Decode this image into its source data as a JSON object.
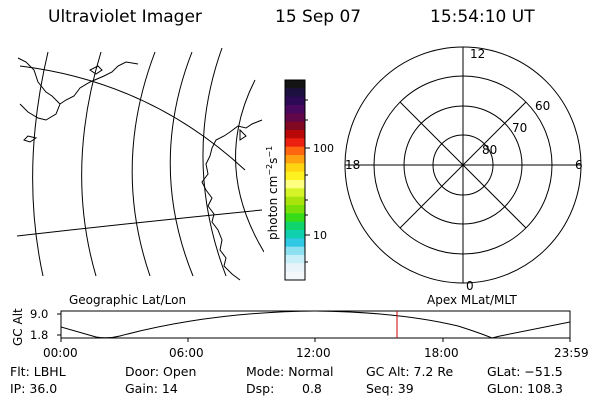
{
  "header": {
    "title": "Ultraviolet Imager",
    "date": "15 Sep 07",
    "time": "15:54:10 UT"
  },
  "colorbar": {
    "unit_main": "photon cm",
    "unit_sup1": "−2",
    "unit_s": "s",
    "unit_sup2": "−1",
    "tick_100": "100",
    "tick_10": "10",
    "colors": [
      "#141414",
      "#1c1040",
      "#2c0a55",
      "#48085e",
      "#62064a",
      "#800820",
      "#b80808",
      "#ec2010",
      "#ff6610",
      "#ffa010",
      "#ffd410",
      "#fff020",
      "#ffff80",
      "#d4f428",
      "#a8e40c",
      "#78e008",
      "#36dc18",
      "#10d46c",
      "#10d0b0",
      "#30c8e4",
      "#8ce0f0",
      "#c8eef8",
      "#e8f4fa",
      "#f4f8fb"
    ]
  },
  "polar": {
    "lat_labels": [
      "80",
      "70",
      "60"
    ],
    "mlt_labels": {
      "top": "12",
      "left": "18",
      "right": "6",
      "bottom": "0"
    }
  },
  "labels": {
    "geo": "Geographic Lat/Lon",
    "apex": "Apex MLat/MLT"
  },
  "altitude_plot": {
    "axis_title": "GC Alt",
    "y_ticks": [
      "9.0",
      "1.8"
    ],
    "x_ticks": [
      "00:00",
      "06:00",
      "12:00",
      "18:00",
      "23:59"
    ],
    "current_time_marker": "15:54"
  },
  "footer": {
    "flt": "Flt: LBHL",
    "ip": "IP: 36.0",
    "door": "Door: Open",
    "gain": "Gain: 14",
    "mode": "Mode: Normal",
    "dsp_label": "Dsp:",
    "dsp_value": "0.8",
    "gcalt": "GC Alt: 7.2 Re",
    "seq": "Seq: 39",
    "glat": "GLat: −51.5",
    "glon": "GLon: 108.3"
  },
  "colors": {
    "marker": "#cc0000",
    "ink": "#000000"
  }
}
